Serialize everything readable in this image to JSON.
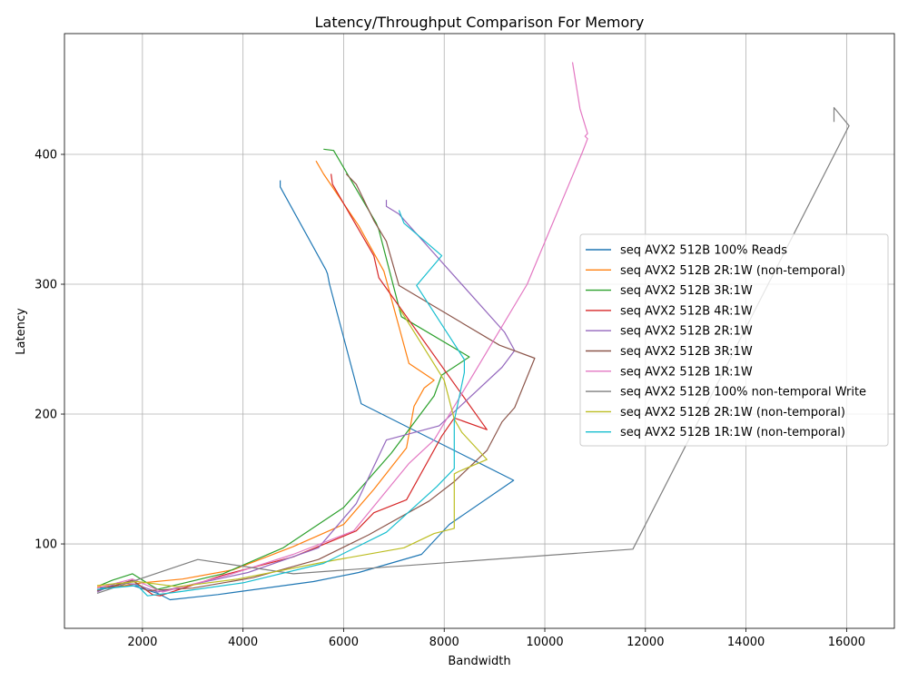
{
  "chart_data": {
    "type": "line",
    "title": "Latency/Throughput Comparison For Memory",
    "xlabel": "Bandwidth",
    "ylabel": "Latency",
    "xlim": [
      450,
      16950
    ],
    "ylim": [
      35,
      493
    ],
    "xticks": [
      2000,
      4000,
      6000,
      8000,
      10000,
      12000,
      14000,
      16000
    ],
    "yticks": [
      100,
      200,
      300,
      400
    ],
    "grid": true,
    "legend_position": "center-right",
    "series": [
      {
        "name": "seq AVX2 512B 100% Reads",
        "color": "#1f77b4",
        "points": [
          [
            4740,
            380
          ],
          [
            4740,
            375
          ],
          [
            5650,
            311
          ],
          [
            5680,
            308
          ],
          [
            5720,
            300
          ],
          [
            6350,
            208
          ],
          [
            9380,
            149
          ],
          [
            8100,
            115
          ],
          [
            7550,
            92
          ],
          [
            6300,
            78
          ],
          [
            5400,
            71
          ],
          [
            3500,
            61
          ],
          [
            2550,
            57
          ],
          [
            2300,
            62
          ],
          [
            1800,
            68
          ],
          [
            1150,
            66
          ]
        ]
      },
      {
        "name": "seq AVX2 512B 2R:1W (non-temporal)",
        "color": "#ff7f0e",
        "points": [
          [
            5450,
            395
          ],
          [
            5600,
            385
          ],
          [
            6300,
            345
          ],
          [
            6800,
            310
          ],
          [
            7300,
            239
          ],
          [
            7800,
            226
          ],
          [
            7600,
            220
          ],
          [
            7400,
            206
          ],
          [
            7250,
            174
          ],
          [
            6600,
            142
          ],
          [
            6000,
            115
          ],
          [
            5000,
            98
          ],
          [
            3800,
            80
          ],
          [
            2800,
            73
          ],
          [
            2000,
            70
          ],
          [
            1650,
            68
          ],
          [
            1100,
            67
          ]
        ]
      },
      {
        "name": "seq AVX2 512B 3R:1W",
        "color": "#2ca02c",
        "points": [
          [
            5600,
            404
          ],
          [
            5800,
            403
          ],
          [
            6650,
            347
          ],
          [
            6700,
            342
          ],
          [
            7150,
            275
          ],
          [
            8500,
            244
          ],
          [
            7950,
            230
          ],
          [
            7800,
            214
          ],
          [
            6950,
            170
          ],
          [
            6000,
            128
          ],
          [
            4800,
            97
          ],
          [
            3600,
            77
          ],
          [
            2300,
            65
          ],
          [
            1800,
            77
          ],
          [
            1400,
            72
          ],
          [
            1150,
            68
          ]
        ]
      },
      {
        "name": "seq AVX2 512B 4R:1W",
        "color": "#d62728",
        "points": [
          [
            5750,
            385
          ],
          [
            5780,
            377
          ],
          [
            6600,
            322
          ],
          [
            6700,
            305
          ],
          [
            8850,
            188
          ],
          [
            8200,
            197
          ],
          [
            7950,
            183
          ],
          [
            7250,
            134
          ],
          [
            6600,
            124
          ],
          [
            6250,
            110
          ],
          [
            5000,
            90
          ],
          [
            3600,
            76
          ],
          [
            2350,
            60
          ],
          [
            2200,
            61
          ],
          [
            1800,
            72
          ],
          [
            1300,
            66
          ],
          [
            1100,
            64
          ]
        ]
      },
      {
        "name": "seq AVX2 512B 2R:1W",
        "color": "#9467bd",
        "points": [
          [
            6850,
            365
          ],
          [
            6850,
            360
          ],
          [
            7100,
            354
          ],
          [
            7700,
            328
          ],
          [
            9200,
            263
          ],
          [
            9400,
            249
          ],
          [
            9150,
            236
          ],
          [
            8400,
            209
          ],
          [
            7900,
            191
          ],
          [
            6850,
            180
          ],
          [
            6250,
            131
          ],
          [
            5500,
            97
          ],
          [
            4100,
            78
          ],
          [
            2300,
            63
          ],
          [
            1850,
            69
          ],
          [
            1500,
            70
          ],
          [
            1100,
            63
          ]
        ]
      },
      {
        "name": "seq AVX2 512B 3R:1W",
        "color": "#8c564b",
        "points": [
          [
            6050,
            385
          ],
          [
            6250,
            377
          ],
          [
            6600,
            349
          ],
          [
            6850,
            333
          ],
          [
            7100,
            299
          ],
          [
            9100,
            253
          ],
          [
            9800,
            243
          ],
          [
            9400,
            205
          ],
          [
            9150,
            194
          ],
          [
            8850,
            172
          ],
          [
            8200,
            148
          ],
          [
            7700,
            133
          ],
          [
            6500,
            107
          ],
          [
            5500,
            88
          ],
          [
            4200,
            74
          ],
          [
            3000,
            66
          ],
          [
            2100,
            64
          ],
          [
            1800,
            72
          ],
          [
            1100,
            64
          ]
        ]
      },
      {
        "name": "seq AVX2 512B 1R:1W",
        "color": "#e377c2",
        "points": [
          [
            10550,
            471
          ],
          [
            10700,
            435
          ],
          [
            10850,
            416
          ],
          [
            10800,
            414
          ],
          [
            10850,
            412
          ],
          [
            10750,
            402
          ],
          [
            9650,
            300
          ],
          [
            7800,
            180
          ],
          [
            7300,
            162
          ],
          [
            6200,
            110
          ],
          [
            5000,
            92
          ],
          [
            3700,
            76
          ],
          [
            2400,
            63
          ],
          [
            1800,
            73
          ],
          [
            1100,
            66
          ]
        ]
      },
      {
        "name": "seq AVX2 512B 100% non-temporal Write",
        "color": "#7f7f7f",
        "points": [
          [
            15750,
            425
          ],
          [
            15750,
            436
          ],
          [
            16050,
            422
          ],
          [
            11750,
            96
          ],
          [
            5000,
            77
          ],
          [
            3100,
            88
          ],
          [
            1100,
            62
          ]
        ]
      },
      {
        "name": "seq AVX2 512B 2R:1W (non-temporal)",
        "color": "#bcbd22",
        "points": [
          [
            7100,
            282
          ],
          [
            8000,
            226
          ],
          [
            8200,
            196
          ],
          [
            8350,
            186
          ],
          [
            8850,
            165
          ],
          [
            8300,
            156
          ],
          [
            8200,
            154
          ],
          [
            8200,
            112
          ],
          [
            7800,
            108
          ],
          [
            7200,
            97
          ],
          [
            5600,
            86
          ],
          [
            3900,
            73
          ],
          [
            2700,
            67
          ],
          [
            1900,
            71
          ],
          [
            1100,
            68
          ]
        ]
      },
      {
        "name": "seq AVX2 512B 1R:1W (non-temporal)",
        "color": "#17becf",
        "points": [
          [
            7100,
            357
          ],
          [
            7200,
            347
          ],
          [
            7950,
            322
          ],
          [
            7450,
            299
          ],
          [
            8400,
            242
          ],
          [
            8400,
            232
          ],
          [
            8200,
            195
          ],
          [
            8200,
            158
          ],
          [
            7850,
            144
          ],
          [
            6850,
            109
          ],
          [
            5600,
            85
          ],
          [
            4000,
            70
          ],
          [
            2700,
            63
          ],
          [
            2100,
            60
          ],
          [
            1900,
            68
          ],
          [
            1100,
            65
          ]
        ]
      }
    ]
  }
}
